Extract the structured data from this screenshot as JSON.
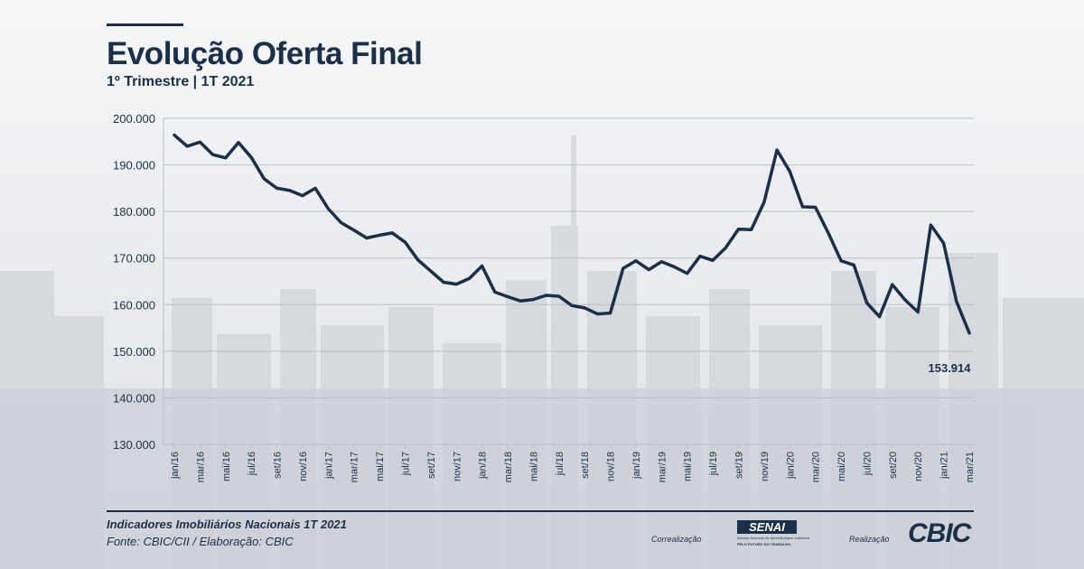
{
  "header": {
    "title": "Evolução Oferta Final",
    "subtitle": "1º Trimestre | 1T 2021"
  },
  "colors": {
    "line": "#1a3049",
    "text": "#1a3049",
    "grid": "#b9bec6"
  },
  "chart_data": {
    "type": "line",
    "title": "Evolução Oferta Final",
    "subtitle": "1º Trimestre | 1T 2021",
    "ylim": [
      130000,
      200000
    ],
    "y_ticks": [
      "200.000",
      "190.000",
      "180.000",
      "170.000",
      "160.000",
      "150.000",
      "140.000",
      "130.000"
    ],
    "y_tick_values": [
      200000,
      190000,
      180000,
      170000,
      160000,
      150000,
      140000,
      130000
    ],
    "grid": "horizontal",
    "x_tick_labels": [
      "jan/16",
      "mar/16",
      "mai/16",
      "jul/16",
      "set/16",
      "nov/16",
      "jan/17",
      "mar/17",
      "mai/17",
      "jul/17",
      "set/17",
      "nov/17",
      "jan/18",
      "mar/18",
      "mai/18",
      "jul/18",
      "set/18",
      "nov/18",
      "jan/19",
      "mar/19",
      "mai/19",
      "jul/19",
      "set/19",
      "nov/19",
      "jan/20",
      "mar/20",
      "mai/20",
      "jul/20",
      "set/20",
      "nov/20",
      "jan/21",
      "mar/21"
    ],
    "series": [
      {
        "values": [
          196400,
          194000,
          194900,
          192200,
          191500,
          194800,
          191600,
          187000,
          185000,
          184500,
          183400,
          185000,
          180600,
          177600,
          176000,
          174300,
          174900,
          175400,
          173400,
          169600,
          167200,
          164800,
          164400,
          165600,
          168300,
          162700,
          161700,
          160800,
          161100,
          162000,
          161800,
          159800,
          159300,
          158000,
          158200,
          167800,
          169400,
          167500,
          169200,
          168100,
          166700,
          170400,
          169500,
          172200,
          176200,
          176100,
          182000,
          193200,
          188600,
          181000,
          180900,
          175400,
          169400,
          168500,
          160400,
          157400,
          164300,
          161000,
          158400,
          177100,
          173200,
          160700,
          153914
        ]
      }
    ],
    "annotations": [
      {
        "label": "153.914"
      }
    ]
  },
  "footer": {
    "source_title": "Indicadores Imobiliários Nacionais 1T 2021",
    "source_line": "Fonte: CBIC/CII / Elaboração: CBIC",
    "correalizacao_label": "Correalização",
    "realizacao_label": "Realização",
    "senai_logo": "SENAI",
    "senai_tagline": "Serviço Nacional de Aprendizagem Industrial",
    "senai_motto": "PELO FUTURO DO TRABALHO",
    "cbic_logo": "CBIC"
  }
}
